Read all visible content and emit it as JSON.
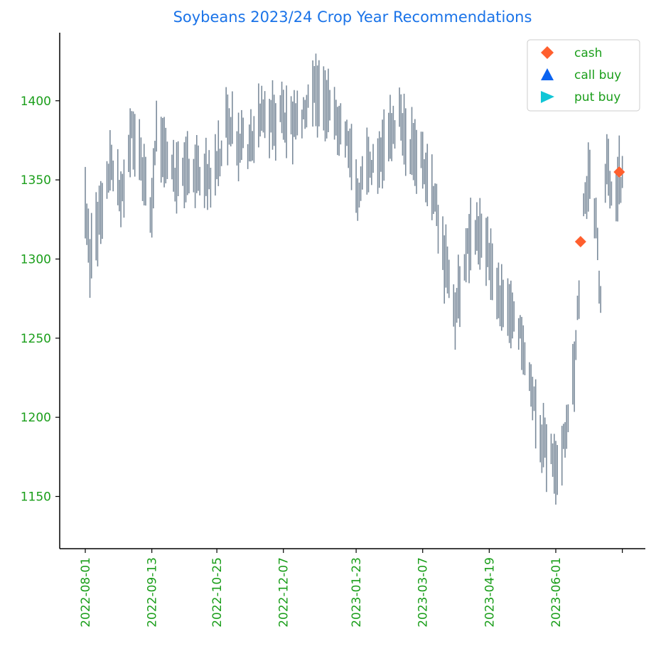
{
  "colors": {
    "bar": "#7b8b9b",
    "cash": "#ff5f2e",
    "call_buy": "#0b63f0",
    "put_buy": "#12c6d6",
    "title": "#1a73e8",
    "tick_labels": "#1a9e1a"
  },
  "chart_data": {
    "type": "ohlc",
    "title": "Soybeans 2023/24 Crop Year Recommendations",
    "xlabel": "",
    "ylabel": "",
    "x_range": [
      "2022-07-28",
      "2023-07-03"
    ],
    "ylim": [
      1117,
      1443
    ],
    "y_ticks": [
      1150,
      1200,
      1250,
      1300,
      1350,
      1400
    ],
    "x_ticks": [
      "2022-08-01",
      "2022-09-13",
      "2022-10-25",
      "2022-12-07",
      "2023-01-23",
      "2023-03-07",
      "2023-04-19",
      "2023-06-01"
    ],
    "extra_x_tick": "2023-07-14",
    "legend": {
      "placement": "top-right",
      "entries": [
        {
          "label": "cash",
          "marker": "diamond",
          "color": "#ff5f2e"
        },
        {
          "label": "call buy",
          "marker": "triangle-up",
          "color": "#0b63f0"
        },
        {
          "label": "put buy",
          "marker": "triangle-right",
          "color": "#12c6d6"
        }
      ]
    },
    "anchors": [
      [
        "2022-08-01",
        1330
      ],
      [
        "2022-08-04",
        1300
      ],
      [
        "2022-08-11",
        1330
      ],
      [
        "2022-08-18",
        1360
      ],
      [
        "2022-08-24",
        1340
      ],
      [
        "2022-08-31",
        1380
      ],
      [
        "2022-09-06",
        1360
      ],
      [
        "2022-09-13",
        1330
      ],
      [
        "2022-09-16",
        1385
      ],
      [
        "2022-09-22",
        1365
      ],
      [
        "2022-09-29",
        1350
      ],
      [
        "2022-10-06",
        1360
      ],
      [
        "2022-10-13",
        1355
      ],
      [
        "2022-10-20",
        1350
      ],
      [
        "2022-10-25",
        1355
      ],
      [
        "2022-10-31",
        1390
      ],
      [
        "2022-11-08",
        1375
      ],
      [
        "2022-11-15",
        1370
      ],
      [
        "2022-11-22",
        1390
      ],
      [
        "2022-12-01",
        1385
      ],
      [
        "2022-12-07",
        1390
      ],
      [
        "2022-12-14",
        1385
      ],
      [
        "2022-12-20",
        1392
      ],
      [
        "2022-12-27",
        1410
      ],
      [
        "2023-01-03",
        1395
      ],
      [
        "2023-01-10",
        1390
      ],
      [
        "2023-01-17",
        1375
      ],
      [
        "2023-01-23",
        1340
      ],
      [
        "2023-01-30",
        1355
      ],
      [
        "2023-02-06",
        1365
      ],
      [
        "2023-02-13",
        1375
      ],
      [
        "2023-02-20",
        1390
      ],
      [
        "2023-02-27",
        1370
      ],
      [
        "2023-03-07",
        1365
      ],
      [
        "2023-03-14",
        1340
      ],
      [
        "2023-03-21",
        1300
      ],
      [
        "2023-03-28",
        1265
      ],
      [
        "2023-04-04",
        1305
      ],
      [
        "2023-04-11",
        1320
      ],
      [
        "2023-04-19",
        1305
      ],
      [
        "2023-04-25",
        1275
      ],
      [
        "2023-05-02",
        1265
      ],
      [
        "2023-05-09",
        1255
      ],
      [
        "2023-05-16",
        1215
      ],
      [
        "2023-05-22",
        1185
      ],
      [
        "2023-05-29",
        1175
      ],
      [
        "2023-06-01",
        1165
      ],
      [
        "2023-06-07",
        1185
      ],
      [
        "2023-06-13",
        1230
      ],
      [
        "2023-06-19",
        1330
      ],
      [
        "2023-06-23",
        1360
      ],
      [
        "2023-06-27",
        1320
      ],
      [
        "2023-06-30",
        1270
      ],
      [
        "2023-07-04",
        1365
      ],
      [
        "2023-07-08",
        1330
      ],
      [
        "2023-07-12",
        1350
      ],
      [
        "2023-07-14",
        1350
      ]
    ],
    "series": [
      {
        "name": "cash",
        "marker": "diamond",
        "color": "#ff5f2e",
        "points": [
          {
            "x": "2023-06-17",
            "y": 1311
          },
          {
            "x": "2023-07-12",
            "y": 1355
          }
        ]
      },
      {
        "name": "call buy",
        "marker": "triangle-up",
        "color": "#0b63f0",
        "points": []
      },
      {
        "name": "put buy",
        "marker": "triangle-right",
        "color": "#12c6d6",
        "points": []
      }
    ]
  }
}
